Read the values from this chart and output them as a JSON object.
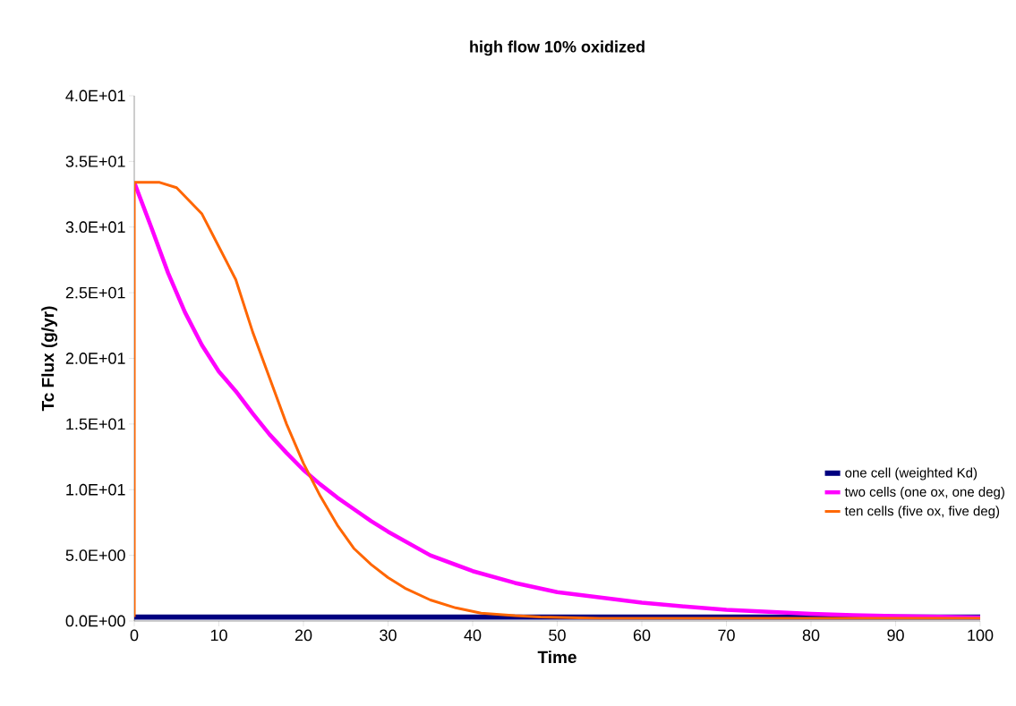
{
  "chart_data": {
    "type": "line",
    "title": "high flow 10% oxidized",
    "xlabel": "Time",
    "ylabel": "Tc Flux (g/yr)",
    "xlim": [
      0,
      100
    ],
    "xticks": [
      0,
      10,
      20,
      30,
      40,
      50,
      60,
      70,
      80,
      90,
      100
    ],
    "ylim": [
      0,
      40
    ],
    "yticks": [
      {
        "value": 0,
        "label": "0.0E+00"
      },
      {
        "value": 5,
        "label": "5.0E+00"
      },
      {
        "value": 10,
        "label": "1.0E+01"
      },
      {
        "value": 15,
        "label": "1.5E+01"
      },
      {
        "value": 20,
        "label": "2.0E+01"
      },
      {
        "value": 25,
        "label": "2.5E+01"
      },
      {
        "value": 30,
        "label": "3.0E+01"
      },
      {
        "value": 35,
        "label": "3.5E+01"
      },
      {
        "value": 40,
        "label": "4.0E+01"
      }
    ],
    "grid": false,
    "legend": "right",
    "marker": "none",
    "line_style": "solid",
    "series": [
      {
        "name": "one cell (weighted Kd)",
        "color": "#000080",
        "x": [
          0,
          100
        ],
        "values": [
          0.3,
          0.3
        ]
      },
      {
        "name": "two cells (one ox, one deg)",
        "color": "#ff00ff",
        "x": [
          0,
          2,
          4,
          6,
          8,
          10,
          12,
          14,
          16,
          18,
          20,
          22,
          24,
          26,
          28,
          30,
          35,
          40,
          45,
          50,
          55,
          60,
          65,
          70,
          75,
          80,
          85,
          90,
          95,
          100
        ],
        "values": [
          33.4,
          30,
          26.5,
          23.5,
          21,
          19,
          17.5,
          15.8,
          14.2,
          12.8,
          11.5,
          10.4,
          9.4,
          8.5,
          7.6,
          6.8,
          5.0,
          3.8,
          2.9,
          2.2,
          1.8,
          1.4,
          1.1,
          0.85,
          0.7,
          0.55,
          0.45,
          0.38,
          0.32,
          0.28
        ]
      },
      {
        "name": "ten cells (five ox, five deg)",
        "color": "#ff6600",
        "x": [
          0,
          0,
          3,
          5,
          8,
          10,
          12,
          14,
          16,
          18,
          20,
          22,
          24,
          26,
          28,
          30,
          32,
          35,
          38,
          41,
          45,
          48,
          55,
          100
        ],
        "values": [
          0.3,
          33.4,
          33.4,
          33.0,
          31,
          28.5,
          26,
          22,
          18.5,
          15,
          12,
          9.5,
          7.3,
          5.5,
          4.3,
          3.3,
          2.5,
          1.6,
          1.0,
          0.6,
          0.4,
          0.3,
          0.2,
          0.2
        ]
      }
    ]
  }
}
